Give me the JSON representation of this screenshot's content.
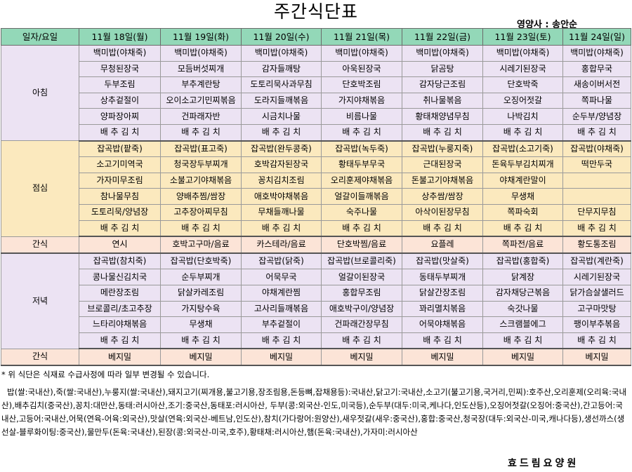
{
  "title": "주간식단표",
  "dietitian": "영양사 : 송안순",
  "header": {
    "label_col": "일자/요일",
    "days": [
      "11월 18일(월)",
      "11월 19일(화)",
      "11월 20일(수)",
      "11월 21일(목)",
      "11월 22일(금)",
      "11월 23일(토)",
      "11월 24일(일)"
    ]
  },
  "meals": {
    "breakfast": {
      "label": "아침",
      "rows": [
        [
          "백미밥(야채죽)",
          "백미밥(야채죽)",
          "백미밥(야채죽)",
          "백미밥(야채죽)",
          "백미밥(야채죽)",
          "백미밥(야채죽)",
          "백미밥(야채죽)"
        ],
        [
          "무청된장국",
          "모듬버섯찌개",
          "감자들깨탕",
          "아욱된장국",
          "닭곰탕",
          "시레기된장국",
          "홍합무국"
        ],
        [
          "두부조림",
          "부추계란탕",
          "도토리묵사과무침",
          "단호박조림",
          "감자당근조림",
          "단호박죽",
          "새송이버서전"
        ],
        [
          "상추겉절이",
          "오이소고기민찌볶음",
          "도라지들깨볶음",
          "가지야채볶음",
          "취나물볶음",
          "오징어젓갈",
          "쪽파나물"
        ],
        [
          "양파장아찌",
          "건파래자반",
          "시금치나물",
          "비름나물",
          "황태채양념무침",
          "나박김치",
          "순두부/양념장"
        ],
        [
          "배 추 김 치",
          "배 추 김 치",
          "배 추 김 치",
          "배 추 김 치",
          "배 추 김 치",
          "배 추 김 치",
          "배 추 김 치"
        ]
      ]
    },
    "lunch": {
      "label": "점심",
      "rows": [
        [
          "잡곡밥(팥죽)",
          "잡곡밥(표고죽)",
          "잡곡밥(완두콩죽)",
          "잡곡밥(녹두죽)",
          "잡곡밥(누룽지죽)",
          "잡곡밥(소고기죽)",
          "잡곡밥(야채죽)"
        ],
        [
          "소고기미역국",
          "청국장두부찌개",
          "호박감자된장국",
          "황태두부무국",
          "근대된장국",
          "돈육두부김치찌개",
          "떡만두국"
        ],
        [
          "가자미무조림",
          "소불고기야채볶음",
          "꽁치김치조림",
          "오리훈제야채볶음",
          "돈불고기야채볶음",
          "야채계란말이",
          ""
        ],
        [
          "참나물무침",
          "양배추찜/쌈장",
          "애호박야채볶음",
          "얼갈이들깨볶음",
          "상추쌈/쌈장",
          "무생채",
          ""
        ],
        [
          "도토리묵/양념장",
          "고추장아찌무침",
          "무채들깨나물",
          "숙주나물",
          "아삭이된장무침",
          "쪽파숙회",
          "단무지무침"
        ],
        [
          "배 추 김 치",
          "배 추 김 치",
          "배 추 김 치",
          "배 추 김 치",
          "배 추 김 치",
          "배 추 김 치",
          "배 추 김 치"
        ]
      ]
    },
    "snack1": {
      "label": "간식",
      "row": [
        "연시",
        "호박고구마/음료",
        "카스테라/음료",
        "단호박찜/음료",
        "요플레",
        "쪽파전/음료",
        "황도통조림"
      ]
    },
    "dinner": {
      "label": "저녁",
      "rows": [
        [
          "잡곡밥(참치죽)",
          "잡곡밥(단호박죽)",
          "잡곡밥(닭죽)",
          "잡곡밥(브로콜리죽)",
          "잡곡밥(맛살죽)",
          "잡곡밥(홍합죽)",
          "잡곡밥(계란죽)"
        ],
        [
          "콩나물신김치국",
          "순두부찌개",
          "어묵무국",
          "얼갈이된장국",
          "동태두부찌개",
          "닭계장",
          "시레기된장국"
        ],
        [
          "메란장조림",
          "닭살카레조림",
          "야채계란찜",
          "홍합무조림",
          "닭살간장조림",
          "감자채당근볶음",
          "닭가슴살샐러드"
        ],
        [
          "브로콜리/초고추장",
          "가지탕수육",
          "고사리들깨볶음",
          "애호박구이/양념장",
          "꽈리멸치볶음",
          "숙갓나물",
          "고구마맛탕"
        ],
        [
          "느타리야채볶음",
          "무생채",
          "부추겉절이",
          "건파래간장무침",
          "어묵야채볶음",
          "스크램블에그",
          "팽이부추볶음"
        ],
        [
          "배 추 김 치",
          "배 추 김 치",
          "배 추 김 치",
          "배 추 김 치",
          "배 추 김 치",
          "배 추 김 치",
          "배 추 김 치"
        ]
      ]
    },
    "snack2": {
      "label": "간식",
      "row": [
        "베지밀",
        "베지밀",
        "베지밀",
        "베지밀",
        "베지밀",
        "베지밀",
        "베지밀"
      ]
    }
  },
  "note": "* 위 식단은 식재료 수급사정에 따라 일부 변경될 수 있습니다.",
  "origin_info": "밥(쌀:국내산),죽(쌀:국내산),누룽지(쌀:국내산),돼지고기(찌개용,불고기용,장조림용,돈등뼈,잡채용등):국내산,닭고기:국내산,소고기(불고기용,국거리,민찌):호주산,오리훈제(오리육:국내산),배추김치(중국산),꽁치:대만산,동태:러시아산,조기:중국산,동태포:러시아산, 두부(콩:외국산-인도,미국등),순두부(대두:미국,케나다,인도산등),오징어젓갈(오징어:중국산),간고등어:국내산,고등어:국내산,어묵(연육-어육:외국산),맛살(연육:외국산-베트남,인도산),참치(가다랑어:원양산),새우젓갈(새우:중국산),홍합:중국산,청국장(대두:외국산-미국,캐나다등),생선까스(생선살-블루화이팅:중국산),물만두(돈육:국내산),된장(콩:외국산-미국,호주),황태채:러시아산,햄(돈육:국내산),가자미:러시아산",
  "footer": "효드림요양원"
}
